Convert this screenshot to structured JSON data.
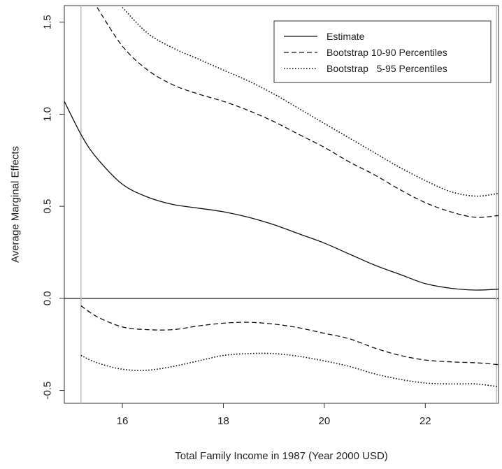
{
  "chart_data": {
    "type": "line",
    "title": "",
    "xlabel": "Total Family Income in 1987 (Year 2000 USD)",
    "ylabel": "Average Marginal Effects",
    "xlim": [
      14.85,
      23.45
    ],
    "ylim": [
      -0.57,
      1.59
    ],
    "x_ticks": [
      16,
      18,
      20,
      22
    ],
    "x_tick_labels": [
      "16",
      "18",
      "20",
      "22"
    ],
    "y_ticks": [
      -0.5,
      0.0,
      0.5,
      1.0,
      1.5
    ],
    "y_tick_labels": [
      "-0.5",
      "0.0",
      "0.5",
      "1.0",
      "1.5"
    ],
    "hline": 0.0,
    "vlines": [
      15.18,
      23.41
    ],
    "legend_position": "top-right",
    "legend": [
      {
        "label": "Estimate",
        "style": "solid"
      },
      {
        "label": "Bootstrap 10-90 Percentiles",
        "style": "dashed"
      },
      {
        "label": "Bootstrap   5-95 Percentiles",
        "style": "dotted"
      }
    ],
    "series": [
      {
        "name": "Estimate",
        "style": "solid",
        "x": [
          14.85,
          15.2,
          15.5,
          16.0,
          16.5,
          17.0,
          17.5,
          18.0,
          18.5,
          19.0,
          19.5,
          20.0,
          20.5,
          21.0,
          21.5,
          22.0,
          22.5,
          23.0,
          23.45
        ],
        "y": [
          1.07,
          0.88,
          0.76,
          0.62,
          0.55,
          0.51,
          0.49,
          0.47,
          0.44,
          0.4,
          0.35,
          0.3,
          0.24,
          0.18,
          0.13,
          0.08,
          0.055,
          0.045,
          0.05
        ]
      },
      {
        "name": "Bootstrap 10-90 Percentiles (upper)",
        "style": "dashed",
        "x": [
          15.5,
          16.0,
          16.5,
          17.0,
          17.5,
          18.0,
          18.5,
          19.0,
          19.5,
          20.0,
          20.5,
          21.0,
          21.5,
          22.0,
          22.5,
          23.0,
          23.45
        ],
        "y": [
          1.58,
          1.37,
          1.24,
          1.16,
          1.11,
          1.07,
          1.02,
          0.96,
          0.89,
          0.82,
          0.74,
          0.67,
          0.59,
          0.52,
          0.47,
          0.44,
          0.45
        ]
      },
      {
        "name": "Bootstrap 10-90 Percentiles (lower)",
        "style": "dashed",
        "x": [
          15.18,
          15.5,
          16.0,
          16.5,
          17.0,
          17.5,
          18.0,
          18.5,
          19.0,
          19.5,
          20.0,
          20.5,
          21.0,
          21.5,
          22.0,
          22.5,
          23.0,
          23.45
        ],
        "y": [
          -0.04,
          -0.1,
          -0.155,
          -0.17,
          -0.17,
          -0.15,
          -0.135,
          -0.13,
          -0.14,
          -0.16,
          -0.19,
          -0.22,
          -0.27,
          -0.31,
          -0.335,
          -0.345,
          -0.35,
          -0.36
        ]
      },
      {
        "name": "Bootstrap 5-95 Percentiles (upper)",
        "style": "dotted",
        "x": [
          16.0,
          16.5,
          17.0,
          17.5,
          18.0,
          18.5,
          19.0,
          19.5,
          20.0,
          20.5,
          21.0,
          21.5,
          22.0,
          22.5,
          23.0,
          23.45
        ],
        "y": [
          1.58,
          1.44,
          1.36,
          1.3,
          1.24,
          1.18,
          1.11,
          1.03,
          0.95,
          0.87,
          0.79,
          0.71,
          0.64,
          0.58,
          0.555,
          0.57
        ]
      },
      {
        "name": "Bootstrap 5-95 Percentiles (lower)",
        "style": "dotted",
        "x": [
          15.18,
          15.5,
          16.0,
          16.5,
          17.0,
          17.5,
          18.0,
          18.5,
          19.0,
          19.5,
          20.0,
          20.5,
          21.0,
          21.5,
          22.0,
          22.5,
          23.0,
          23.45
        ],
        "y": [
          -0.31,
          -0.35,
          -0.385,
          -0.39,
          -0.37,
          -0.34,
          -0.31,
          -0.3,
          -0.3,
          -0.315,
          -0.34,
          -0.37,
          -0.41,
          -0.44,
          -0.46,
          -0.465,
          -0.465,
          -0.48
        ]
      }
    ]
  }
}
